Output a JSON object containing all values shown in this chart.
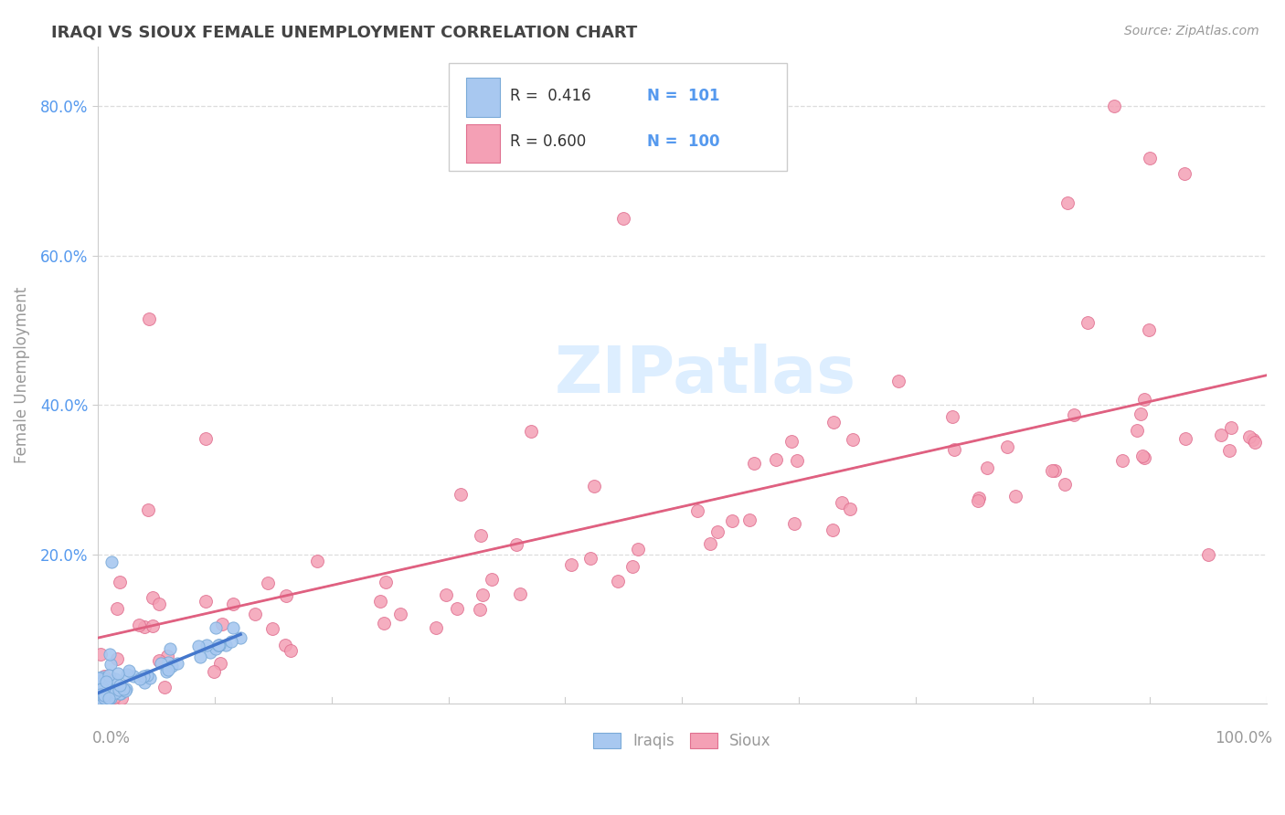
{
  "title": "IRAQI VS SIOUX FEMALE UNEMPLOYMENT CORRELATION CHART",
  "source": "Source: ZipAtlas.com",
  "ylabel": "Female Unemployment",
  "iraqi_R": 0.416,
  "iraqi_N": 101,
  "sioux_R": 0.6,
  "sioux_N": 100,
  "iraqi_color": "#a8c8f0",
  "sioux_color": "#f4a0b5",
  "iraqi_edge": "#7aaad8",
  "sioux_edge": "#e07090",
  "iraqi_line_color": "#4477cc",
  "sioux_line_color": "#e06080",
  "sioux_dash_color": "#aabbdd",
  "title_color": "#444444",
  "tick_color": "#5599ee",
  "axis_color": "#cccccc",
  "label_color": "#999999",
  "watermark_color": "#ddeeff",
  "background_color": "#ffffff",
  "grid_color": "#dddddd",
  "ylim": [
    0.0,
    0.88
  ],
  "xlim": [
    0.0,
    1.0
  ],
  "ytick_positions": [
    0.2,
    0.4,
    0.6,
    0.8
  ],
  "ytick_labels": [
    "20.0%",
    "40.0%",
    "60.0%",
    "80.0%"
  ]
}
